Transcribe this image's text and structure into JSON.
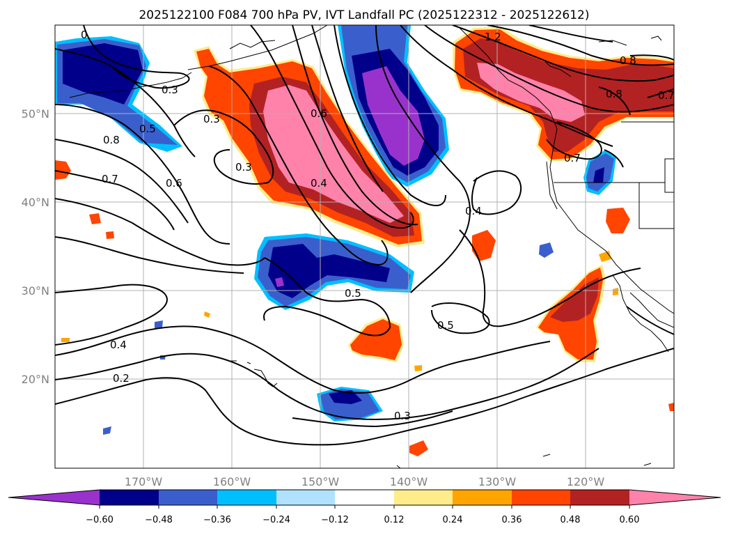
{
  "title": "2025122100 F084 700 hPa PV, IVT Landfall PC (2025122312 - 2025122612)",
  "lon_ticks": [
    "170°W",
    "160°W",
    "150°W",
    "140°W",
    "130°W",
    "120°W"
  ],
  "lat_ticks": [
    "50°N",
    "40°N",
    "30°N",
    "20°N"
  ],
  "colorbar": {
    "ticks": [
      "−0.60",
      "−0.48",
      "−0.36",
      "−0.24",
      "−0.12",
      "0.12",
      "0.24",
      "0.36",
      "0.48",
      "0.60"
    ],
    "colors": [
      "#9932cc",
      "#00008b",
      "#3a5fcd",
      "#00bfff",
      "#b0e2ff",
      "#ffffff",
      "#ffec8b",
      "#ffa500",
      "#ff4500",
      "#b22222",
      "#ff82ab"
    ]
  },
  "contour_labels": {
    "c1": "0",
    "c2": "0.3",
    "c3": "0.5",
    "c4": "0.8",
    "c5": "0.7",
    "c6": "0.6",
    "c7": "0.3",
    "c8": "0.3",
    "c9": "0.6",
    "c10": "0.4",
    "c11": "0.5",
    "c12": "0.4",
    "c13": "0.5",
    "c14": "0.4",
    "c15": "0.2",
    "c16": "0.3",
    "c17": "1.2",
    "c18": "0.8",
    "c19": "0.8",
    "c20": "0.7",
    "c21": "0.7"
  },
  "colors": {
    "neg_dark": "#00008b",
    "neg_mid": "#3a5fcd",
    "neg_light": "#00bfff",
    "neg_pale": "#b0e2ff",
    "neg_purple": "#9932cc",
    "pos_yellow": "#ffec8b",
    "pos_orange": "#ffa500",
    "pos_red": "#ff4500",
    "pos_dark": "#b22222",
    "pos_pink": "#ff82ab"
  },
  "chart_data": {
    "type": "map",
    "title": "2025122100 F084 700 hPa PV, IVT Landfall PC (2025122312 - 2025122612)",
    "shaded_field": "IVT Landfall PC",
    "contour_field": "700 hPa PV",
    "lon_range": [
      -180,
      -110
    ],
    "lat_range": [
      10,
      60
    ],
    "colorbar_levels": [
      -0.6,
      -0.48,
      -0.36,
      -0.24,
      -0.12,
      0.12,
      0.24,
      0.36,
      0.48,
      0.6
    ],
    "colorbar_extend": "both"
  }
}
